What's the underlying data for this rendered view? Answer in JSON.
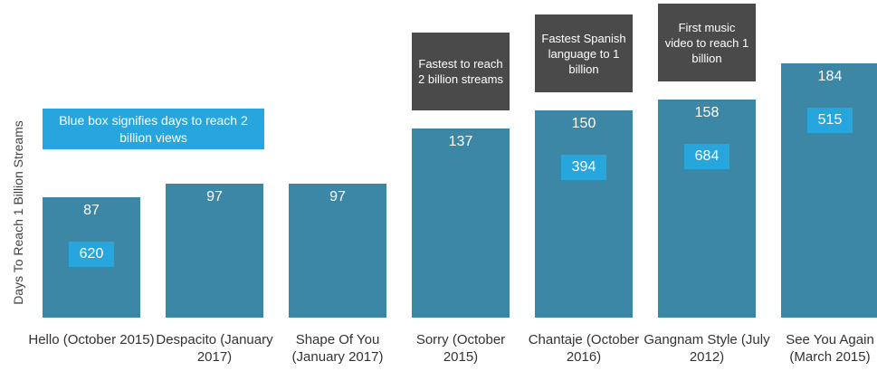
{
  "chart_data": {
    "type": "bar",
    "y_axis_label": "Days To Reach 1 Billion Streams",
    "note": "Blue box signifies days to reach 2 billion views",
    "categories": [
      "Hello (October 2015)",
      "Despacito (January 2017)",
      "Shape Of You (January 2017)",
      "Sorry (October 2015)",
      "Chantaje (October 2016)",
      "Gangnam Style (July 2012)",
      "See You Again (March 2015)"
    ],
    "values": [
      87,
      97,
      97,
      137,
      150,
      158,
      184
    ],
    "blue_box_values": [
      620,
      null,
      null,
      null,
      394,
      684,
      515
    ],
    "annotations": [
      null,
      null,
      null,
      "Fastest to reach 2 billion streams",
      "Fastest Spanish language to 1 billion",
      "First music video to reach 1 billion",
      null
    ],
    "color": "#3d87a6",
    "blue_box_color": "#27a6dd",
    "annotation_color": "#4a4a4a",
    "ylim": [
      -19,
      200
    ]
  }
}
